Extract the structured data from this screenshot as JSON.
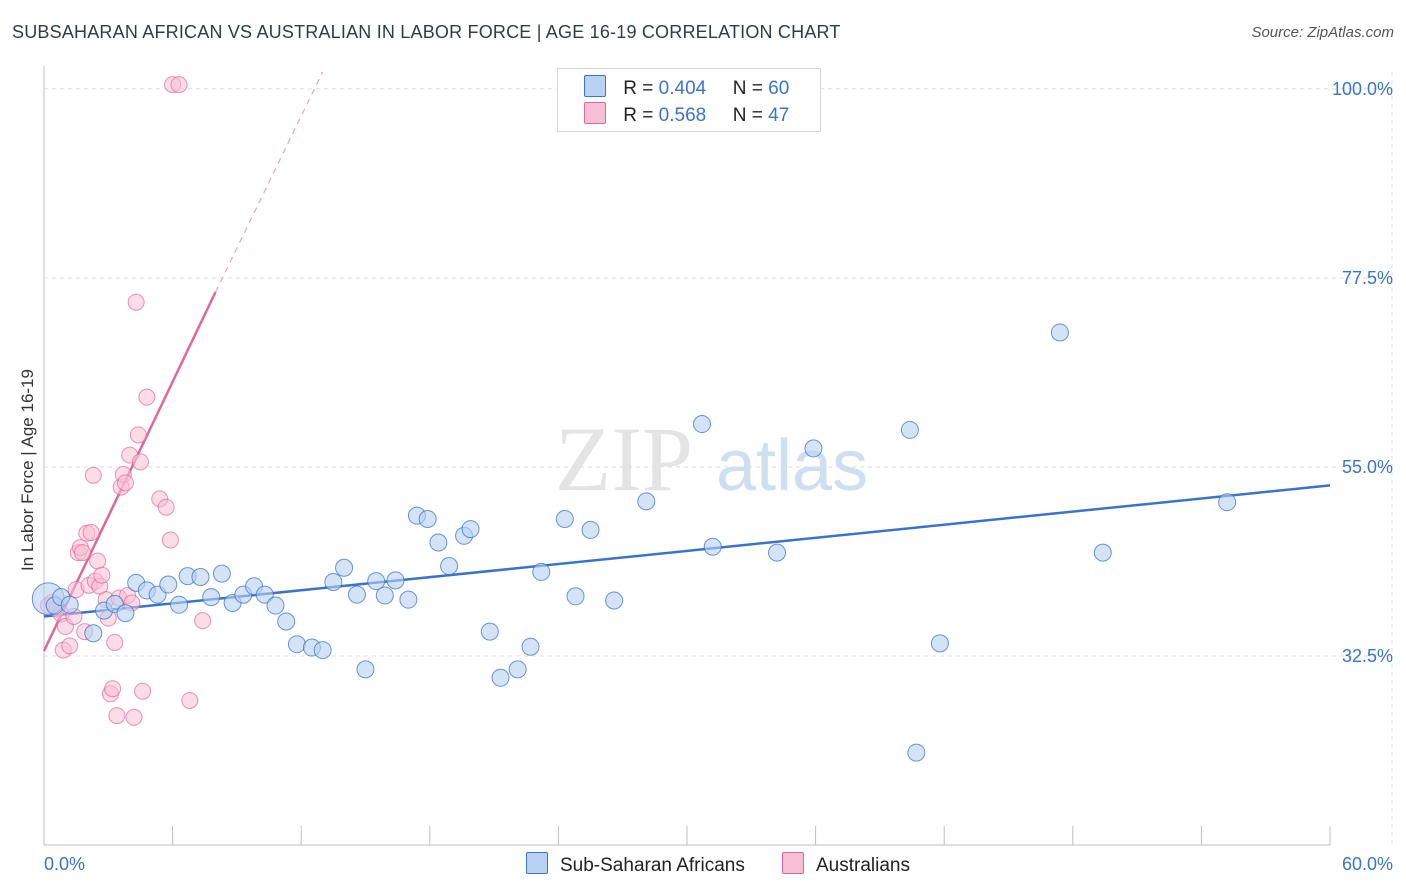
{
  "header": {
    "title": "SUBSAHARAN AFRICAN VS AUSTRALIAN IN LABOR FORCE | AGE 16-19 CORRELATION CHART",
    "source": "Source: ZipAtlas.com"
  },
  "colors": {
    "blue": "#3a74c9",
    "blue_fill": "#b9d1f2",
    "pink": "#e0679a",
    "pink_fill": "#f7bfd3",
    "grid": "#dddddd",
    "tick_label": "#3a74c9"
  },
  "legend": {
    "row1": {
      "r_label": "R =",
      "r_value": "0.404",
      "n_label": "N =",
      "n_value": "60"
    },
    "row2": {
      "r_label": "R =",
      "r_value": "0.568",
      "n_label": "N =",
      "n_value": "47"
    }
  },
  "bottom_legend": {
    "blue_label": "Sub-Saharan Africans",
    "pink_label": "Australians"
  },
  "watermark": {
    "zip": "ZIP",
    "atlas": "atlas"
  },
  "chart_data": {
    "type": "scatter",
    "title": "SUBSAHARAN AFRICAN VS AUSTRALIAN IN LABOR FORCE | AGE 16-19 CORRELATION CHART",
    "xlabel": "",
    "ylabel": "In Labor Force | Age 16-19",
    "xlim": [
      0,
      60
    ],
    "ylim": [
      10,
      102
    ],
    "x_tick_labels": [
      "0.0%",
      "60.0%"
    ],
    "y_ticks": [
      32.5,
      55.0,
      77.5,
      100.0
    ],
    "y_tick_labels": [
      "32.5%",
      "55.0%",
      "77.5%",
      "100.0%"
    ],
    "grid": true,
    "series": [
      {
        "name": "Sub-Saharan Africans",
        "R": 0.404,
        "N": 60,
        "trend": {
          "x": [
            0,
            60
          ],
          "y": [
            37.2,
            52.8
          ]
        },
        "points": [
          {
            "x": 0.2,
            "y": 39.3,
            "big": true
          },
          {
            "x": 0.5,
            "y": 38.5
          },
          {
            "x": 0.8,
            "y": 39.5
          },
          {
            "x": 1.2,
            "y": 38.6
          },
          {
            "x": 2.3,
            "y": 35.2
          },
          {
            "x": 2.8,
            "y": 37.9
          },
          {
            "x": 3.3,
            "y": 38.7
          },
          {
            "x": 3.8,
            "y": 37.6
          },
          {
            "x": 4.3,
            "y": 41.2
          },
          {
            "x": 4.8,
            "y": 40.3
          },
          {
            "x": 5.3,
            "y": 39.8
          },
          {
            "x": 5.8,
            "y": 41.0
          },
          {
            "x": 6.3,
            "y": 38.6
          },
          {
            "x": 6.7,
            "y": 42.0
          },
          {
            "x": 7.3,
            "y": 41.9
          },
          {
            "x": 7.8,
            "y": 39.5
          },
          {
            "x": 8.3,
            "y": 42.3
          },
          {
            "x": 8.8,
            "y": 38.8
          },
          {
            "x": 9.3,
            "y": 39.8
          },
          {
            "x": 9.8,
            "y": 40.8
          },
          {
            "x": 10.3,
            "y": 39.8
          },
          {
            "x": 10.8,
            "y": 38.5
          },
          {
            "x": 11.3,
            "y": 36.6
          },
          {
            "x": 11.8,
            "y": 33.9
          },
          {
            "x": 12.5,
            "y": 33.5
          },
          {
            "x": 13.0,
            "y": 33.2
          },
          {
            "x": 13.5,
            "y": 41.3
          },
          {
            "x": 14.0,
            "y": 43.0
          },
          {
            "x": 14.6,
            "y": 39.8
          },
          {
            "x": 15.0,
            "y": 30.9
          },
          {
            "x": 15.5,
            "y": 41.4
          },
          {
            "x": 15.9,
            "y": 39.7
          },
          {
            "x": 16.4,
            "y": 41.5
          },
          {
            "x": 17.0,
            "y": 39.2
          },
          {
            "x": 17.4,
            "y": 49.2
          },
          {
            "x": 17.9,
            "y": 48.8
          },
          {
            "x": 18.4,
            "y": 46.0
          },
          {
            "x": 18.9,
            "y": 43.2
          },
          {
            "x": 19.6,
            "y": 46.8
          },
          {
            "x": 19.9,
            "y": 47.6
          },
          {
            "x": 20.8,
            "y": 35.4
          },
          {
            "x": 21.3,
            "y": 29.9
          },
          {
            "x": 22.1,
            "y": 30.9
          },
          {
            "x": 22.7,
            "y": 33.6
          },
          {
            "x": 23.2,
            "y": 42.5
          },
          {
            "x": 24.3,
            "y": 48.8
          },
          {
            "x": 24.8,
            "y": 39.6
          },
          {
            "x": 25.5,
            "y": 47.5
          },
          {
            "x": 26.6,
            "y": 39.1
          },
          {
            "x": 28.1,
            "y": 50.9
          },
          {
            "x": 30.7,
            "y": 60.1
          },
          {
            "x": 31.2,
            "y": 45.5
          },
          {
            "x": 34.2,
            "y": 44.8
          },
          {
            "x": 35.9,
            "y": 57.2
          },
          {
            "x": 40.4,
            "y": 59.4
          },
          {
            "x": 40.7,
            "y": 21.0
          },
          {
            "x": 41.8,
            "y": 34.0
          },
          {
            "x": 47.4,
            "y": 71.0
          },
          {
            "x": 49.4,
            "y": 44.8
          },
          {
            "x": 55.2,
            "y": 50.8
          }
        ]
      },
      {
        "name": "Australians",
        "R": 0.568,
        "N": 47,
        "trend": {
          "x": [
            0,
            8.0
          ],
          "y": [
            33.1,
            75.8
          ]
        },
        "trend_extension": {
          "x": [
            8.0,
            13.0
          ],
          "y": [
            75.8,
            102
          ]
        },
        "points": [
          {
            "x": 0.2,
            "y": 38.5
          },
          {
            "x": 0.4,
            "y": 38.9
          },
          {
            "x": 0.6,
            "y": 38.1
          },
          {
            "x": 0.8,
            "y": 37.5
          },
          {
            "x": 0.9,
            "y": 33.2
          },
          {
            "x": 1.0,
            "y": 36.0
          },
          {
            "x": 1.2,
            "y": 33.7
          },
          {
            "x": 1.4,
            "y": 37.2
          },
          {
            "x": 1.5,
            "y": 40.4
          },
          {
            "x": 1.6,
            "y": 44.8
          },
          {
            "x": 1.7,
            "y": 45.4
          },
          {
            "x": 1.8,
            "y": 44.8
          },
          {
            "x": 1.9,
            "y": 35.4
          },
          {
            "x": 2.0,
            "y": 47.1
          },
          {
            "x": 2.1,
            "y": 40.9
          },
          {
            "x": 2.2,
            "y": 47.2
          },
          {
            "x": 2.3,
            "y": 54.0
          },
          {
            "x": 2.4,
            "y": 41.4
          },
          {
            "x": 2.5,
            "y": 43.8
          },
          {
            "x": 2.6,
            "y": 40.8
          },
          {
            "x": 2.7,
            "y": 42.1
          },
          {
            "x": 2.9,
            "y": 39.2
          },
          {
            "x": 3.0,
            "y": 37.0
          },
          {
            "x": 3.1,
            "y": 28.0
          },
          {
            "x": 3.2,
            "y": 28.6
          },
          {
            "x": 3.3,
            "y": 34.1
          },
          {
            "x": 3.4,
            "y": 25.4
          },
          {
            "x": 3.5,
            "y": 39.4
          },
          {
            "x": 3.6,
            "y": 52.6
          },
          {
            "x": 3.7,
            "y": 54.1
          },
          {
            "x": 3.8,
            "y": 53.1
          },
          {
            "x": 3.9,
            "y": 39.7
          },
          {
            "x": 4.0,
            "y": 56.4
          },
          {
            "x": 4.1,
            "y": 38.8
          },
          {
            "x": 4.2,
            "y": 25.2
          },
          {
            "x": 4.3,
            "y": 74.6
          },
          {
            "x": 4.4,
            "y": 58.8
          },
          {
            "x": 4.5,
            "y": 55.6
          },
          {
            "x": 4.6,
            "y": 28.3
          },
          {
            "x": 4.8,
            "y": 63.3
          },
          {
            "x": 5.4,
            "y": 51.2
          },
          {
            "x": 5.7,
            "y": 50.2
          },
          {
            "x": 5.9,
            "y": 46.3
          },
          {
            "x": 6.0,
            "y": 100.5
          },
          {
            "x": 6.3,
            "y": 100.5
          },
          {
            "x": 6.8,
            "y": 27.2
          },
          {
            "x": 7.4,
            "y": 36.7
          }
        ]
      }
    ]
  }
}
